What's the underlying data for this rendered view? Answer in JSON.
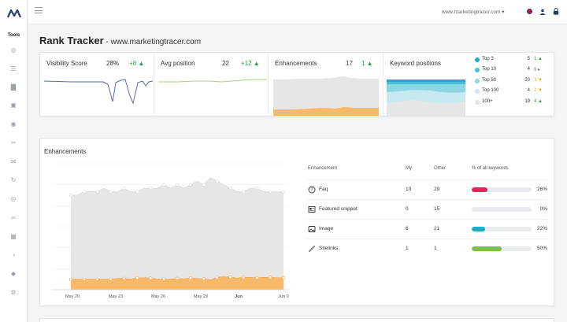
{
  "sidebar": {
    "tools_label": "Tools",
    "icons": [
      "eye-icon",
      "steps-icon",
      "chart-icon",
      "inbox-icon",
      "globe-icon",
      "scissors-icon",
      "mail-icon",
      "sync-icon",
      "target-icon",
      "link-icon",
      "calendar-icon",
      "pie-icon",
      "tag-icon",
      "gear-icon"
    ]
  },
  "topbar": {
    "domain": "www.marketingtracer.com",
    "accent": "#c8102e"
  },
  "header": {
    "title": "Rank Tracker",
    "separator": " - ",
    "domain": "www.marketingtracer.com"
  },
  "summary": {
    "visibility": {
      "label": "Visibility Score",
      "value": "28%",
      "delta": "+8 ▲"
    },
    "avg_position": {
      "label": "Avg position",
      "value": "22",
      "delta": "+12 ▲"
    },
    "enhancements": {
      "label": "Enhancements",
      "value": "17",
      "delta": "1 ▲"
    },
    "keyword_positions": {
      "label": "Keyword positions",
      "rows": [
        {
          "name": "Top 3",
          "count": "5",
          "delta": "1 ▲",
          "color": "#1bb0c6",
          "delta_color": "#2e9c4a"
        },
        {
          "name": "Top 10",
          "count": "4",
          "delta": "0 ▸",
          "color": "#46c0d2",
          "delta_color": "#777777"
        },
        {
          "name": "Top 50",
          "count": "20",
          "delta": "3 ▼",
          "color": "#8ad6e2",
          "delta_color": "#e0b000"
        },
        {
          "name": "Top 100",
          "count": "4",
          "delta": "2 ▼",
          "color": "#c6eaf0",
          "delta_color": "#e0b000"
        },
        {
          "name": "100+",
          "count": "19",
          "delta": "4 ▲",
          "color": "#e2e4e7",
          "delta_color": "#2e9c4a"
        }
      ]
    }
  },
  "enhancements_card": {
    "title": "Enhancements",
    "chart_data": {
      "type": "area",
      "x_ticks": [
        "May 20",
        "May 23",
        "May 26",
        "May 29",
        "Jun",
        "Jun 0"
      ],
      "bold_tick": "Jun",
      "series": [
        {
          "color": "#e6e6e6",
          "values": [
            27,
            27,
            28,
            28,
            28,
            29,
            28,
            28,
            29,
            28,
            28,
            29,
            29,
            29,
            30,
            29,
            30,
            29,
            30,
            31,
            30,
            32,
            31,
            30,
            29,
            28,
            28,
            29,
            29,
            28,
            28,
            28,
            28
          ]
        },
        {
          "color": "#f9b96a",
          "values": [
            3,
            3,
            3,
            3,
            3,
            3,
            3,
            3.2,
            3.2,
            3,
            3.4,
            3.4,
            3.3,
            3,
            3,
            3,
            3.2,
            3.1,
            3.3,
            3.2,
            3.1,
            2.8,
            3.5,
            3.7,
            3.6,
            3.3,
            3.5,
            3.5,
            3.4,
            3.5,
            3.5,
            3.4,
            3.4
          ]
        }
      ],
      "ylim": [
        0,
        36
      ]
    },
    "table": {
      "headers": {
        "name": "Enhancement",
        "my": "My",
        "other": "Other",
        "pct": "% of all keywords"
      },
      "rows": [
        {
          "name": "Faq",
          "icon": "question-icon",
          "my": "10",
          "other": "29",
          "pct": "26%",
          "fraction": 0.26,
          "color": "#e4245c"
        },
        {
          "name": "Featured snippet",
          "icon": "snippet-icon",
          "my": "0",
          "other": "15",
          "pct": "0%",
          "fraction": 0,
          "color": "#999999"
        },
        {
          "name": "Image",
          "icon": "image-icon",
          "my": "6",
          "other": "21",
          "pct": "22%",
          "fraction": 0.22,
          "color": "#1bb0c6"
        },
        {
          "name": "Sitelinks",
          "icon": "link-icon",
          "my": "1",
          "other": "1",
          "pct": "50%",
          "fraction": 0.5,
          "color": "#7cc04b"
        }
      ]
    }
  }
}
